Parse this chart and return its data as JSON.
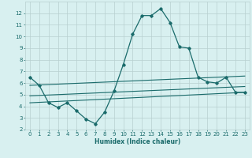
{
  "xlabel": "Humidex (Indice chaleur)",
  "x_values": [
    0,
    1,
    2,
    3,
    4,
    5,
    6,
    7,
    8,
    9,
    10,
    11,
    12,
    13,
    14,
    15,
    16,
    17,
    18,
    19,
    20,
    21,
    22,
    23
  ],
  "main_line": [
    6.5,
    5.8,
    4.3,
    3.9,
    4.3,
    3.6,
    2.9,
    2.5,
    3.5,
    5.3,
    7.6,
    10.2,
    11.8,
    11.8,
    12.4,
    11.2,
    9.1,
    9.0,
    6.5,
    6.1,
    6.0,
    6.5,
    5.2,
    5.2
  ],
  "trend_line1": [
    [
      0,
      4.9
    ],
    [
      23,
      5.7
    ]
  ],
  "trend_line2": [
    [
      0,
      4.3
    ],
    [
      23,
      5.2
    ]
  ],
  "trend_line3": [
    [
      0,
      5.8
    ],
    [
      23,
      6.6
    ]
  ],
  "line_color": "#1a6b6b",
  "bg_color": "#d8f0f0",
  "grid_color": "#b8d0d0",
  "ylim": [
    2,
    13
  ],
  "xlim": [
    -0.5,
    23.5
  ],
  "yticks": [
    2,
    3,
    4,
    5,
    6,
    7,
    8,
    9,
    10,
    11,
    12
  ],
  "xticks": [
    0,
    1,
    2,
    3,
    4,
    5,
    6,
    7,
    8,
    9,
    10,
    11,
    12,
    13,
    14,
    15,
    16,
    17,
    18,
    19,
    20,
    21,
    22,
    23
  ]
}
